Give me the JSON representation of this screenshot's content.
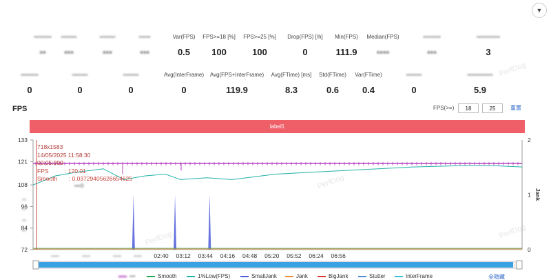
{
  "page": {
    "dropdown_icon": "chevron-down-icon"
  },
  "stats_row1": [
    {
      "label": "",
      "value": "",
      "blurred": true
    },
    {
      "label": "",
      "value": "",
      "blurred": true
    },
    {
      "label": "",
      "value": "",
      "blurred": true
    },
    {
      "label": "",
      "value": "",
      "blurred": true
    },
    {
      "label": "Var(FPS)",
      "value": "0.5"
    },
    {
      "label": "FPS>=18 [%]",
      "value": "100"
    },
    {
      "label": "FPS>=25 [%]",
      "value": "100"
    },
    {
      "label": "Drop(FPS) [/h]",
      "value": "0"
    },
    {
      "label": "Min(FPS)",
      "value": "111.9"
    },
    {
      "label": "Median(FPS)",
      "value": "",
      "blurred": true
    },
    {
      "label": "",
      "value": "",
      "blurred": true
    },
    {
      "label": "",
      "value": "3",
      "blurred": true
    }
  ],
  "stats_row2": [
    {
      "label": "",
      "value": "0",
      "blurred": true
    },
    {
      "label": "",
      "value": "0",
      "blurred": true
    },
    {
      "label": "",
      "value": "0",
      "blurred": true
    },
    {
      "label": "Avg(InterFrame)",
      "value": "0"
    },
    {
      "label": "Avg(FPS+InterFrame)",
      "value": "119.9"
    },
    {
      "label": "Avg(FTime) [ms]",
      "value": "8.3"
    },
    {
      "label": "Std(FTime)",
      "value": "0.6"
    },
    {
      "label": "Var(FTime)",
      "value": "0.4"
    },
    {
      "label": "",
      "value": "0",
      "blurred": true
    },
    {
      "label": "",
      "value": "5.9",
      "blurred": true
    }
  ],
  "fps_section": {
    "title": "FPS",
    "threshold_label": "FPS(>=)",
    "threshold1": "18",
    "threshold2": "25",
    "reset_label": "重置",
    "label_bar": "label1"
  },
  "tooltip": {
    "resolution": "718x1583",
    "datetime": "14/05/2025 11:58:30",
    "elapsed": "00:05:999",
    "fps_line": "FPS          : 120.01",
    "smooth_line": "Smooth       : 0.0372940562665​4625"
  },
  "chart_data": {
    "type": "line",
    "x_ticks": [
      "02:40",
      "03:12",
      "03:44",
      "04:16",
      "04:48",
      "05:20",
      "05:52",
      "06:24",
      "06:56"
    ],
    "y_left_ticks": [
      "133",
      "121",
      "108",
      "96",
      "84",
      "72"
    ],
    "y_right_ticks": [
      "2",
      "1",
      "0"
    ],
    "y_right_label": "Jank",
    "ylim": [
      72,
      133
    ],
    "y_right_lim": [
      0,
      2
    ],
    "series": [
      {
        "name": "FPS",
        "color": "#b43fbf",
        "level": 120
      },
      {
        "name": "1%Low(FPS)",
        "color": "#21b2a6"
      },
      {
        "name": "SmallJank",
        "color": "#4b5bd8",
        "spikes_x": [
          "02:00",
          "03:00",
          "03:50"
        ],
        "value": 1
      }
    ]
  },
  "legend": [
    {
      "name": "",
      "color": "#b43fbf",
      "blurred": true
    },
    {
      "name": "Smooth",
      "color": "#27a85b"
    },
    {
      "name": "1%Low(FPS)",
      "color": "#21b2a6"
    },
    {
      "name": "SmallJank",
      "color": "#4b5bd8"
    },
    {
      "name": "Jank",
      "color": "#e8923a"
    },
    {
      "name": "BigJank",
      "color": "#d83b33"
    },
    {
      "name": "Stutter",
      "color": "#4a8fd6"
    },
    {
      "name": "InterFrame",
      "color": "#36c0d9"
    }
  ],
  "hide_all_label": "全隐藏",
  "watermark": "PerfDog"
}
